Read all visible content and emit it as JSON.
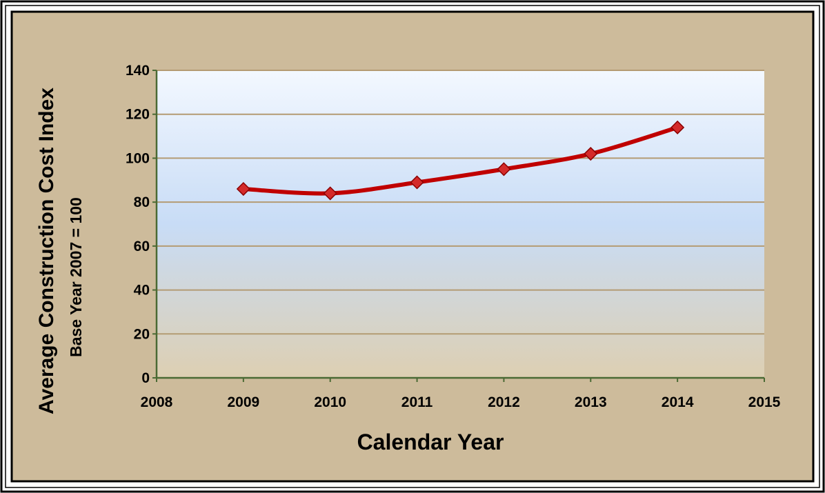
{
  "chart_data": {
    "type": "line",
    "title": "",
    "xlabel": "Calendar Year",
    "ylabel": "Average Construction  Cost Index",
    "ylabel_sub": "Base Year 2007 = 100",
    "xlim": [
      2008,
      2015
    ],
    "ylim": [
      0,
      140
    ],
    "x_ticks": [
      2008,
      2009,
      2010,
      2011,
      2012,
      2013,
      2014,
      2015
    ],
    "y_ticks": [
      0,
      20,
      40,
      60,
      80,
      100,
      120,
      140
    ],
    "grid": true,
    "legend": "none",
    "series": [
      {
        "x": [
          2009,
          2010,
          2011,
          2012,
          2013,
          2014
        ],
        "values": [
          86,
          84,
          89,
          95,
          102,
          114
        ],
        "smooth": true,
        "marker": "diamond"
      }
    ]
  },
  "colors": {
    "frame_background": "#cdbb9b",
    "plot_top": "#f3f8ff",
    "plot_mid": "#c8dcf6",
    "plot_bottom": "#ddcfb2",
    "gridline": "#b49b73",
    "axis_line": "#4a6a34",
    "series_line": "#c00000",
    "marker_fill": "#d42a2a",
    "marker_stroke": "#8a0000"
  }
}
